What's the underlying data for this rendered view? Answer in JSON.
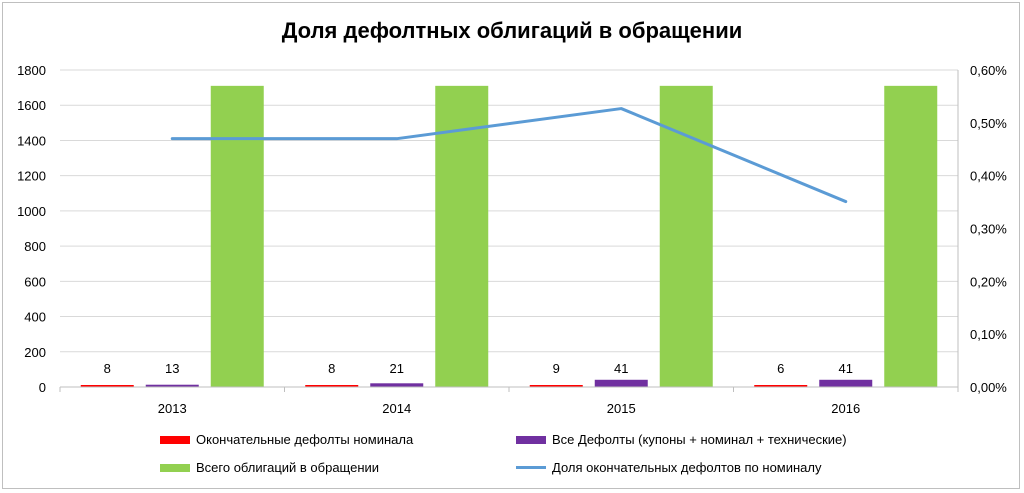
{
  "chart_data": {
    "type": "bar",
    "title": "Доля дефолтных облигаций в обращении",
    "categories": [
      "2013",
      "2014",
      "2015",
      "2016"
    ],
    "series": [
      {
        "name": "Окончательные дефолты номинала",
        "type": "bar",
        "axis": "left",
        "color": "#ff0000",
        "values": [
          8,
          8,
          9,
          6
        ],
        "data_labels": [
          "8",
          "8",
          "9",
          "6"
        ]
      },
      {
        "name": "Все Дефолты (купоны + номинал + технические)",
        "type": "bar",
        "axis": "left",
        "color": "#7030a0",
        "values": [
          13,
          21,
          41,
          41
        ],
        "data_labels": [
          "13",
          "21",
          "41",
          "41"
        ]
      },
      {
        "name": "Всего облигаций в обращении",
        "type": "bar",
        "axis": "left",
        "color": "#92d050",
        "values": [
          1710,
          1710,
          1710,
          1710
        ]
      },
      {
        "name": "Доля окончательных дефолтов по номиналу",
        "type": "line",
        "axis": "right",
        "color": "#5b9bd5",
        "values": [
          0.0047,
          0.0047,
          0.00527,
          0.00351
        ]
      }
    ],
    "ylim": [
      0,
      1800
    ],
    "y_ticks": [
      "0",
      "200",
      "400",
      "600",
      "800",
      "1000",
      "1200",
      "1400",
      "1600",
      "1800"
    ],
    "y2lim": [
      0,
      0.006
    ],
    "y2_ticks": [
      "0,00%",
      "0,10%",
      "0,20%",
      "0,30%",
      "0,40%",
      "0,50%",
      "0,60%"
    ],
    "grid": true,
    "legend_position": "bottom"
  }
}
